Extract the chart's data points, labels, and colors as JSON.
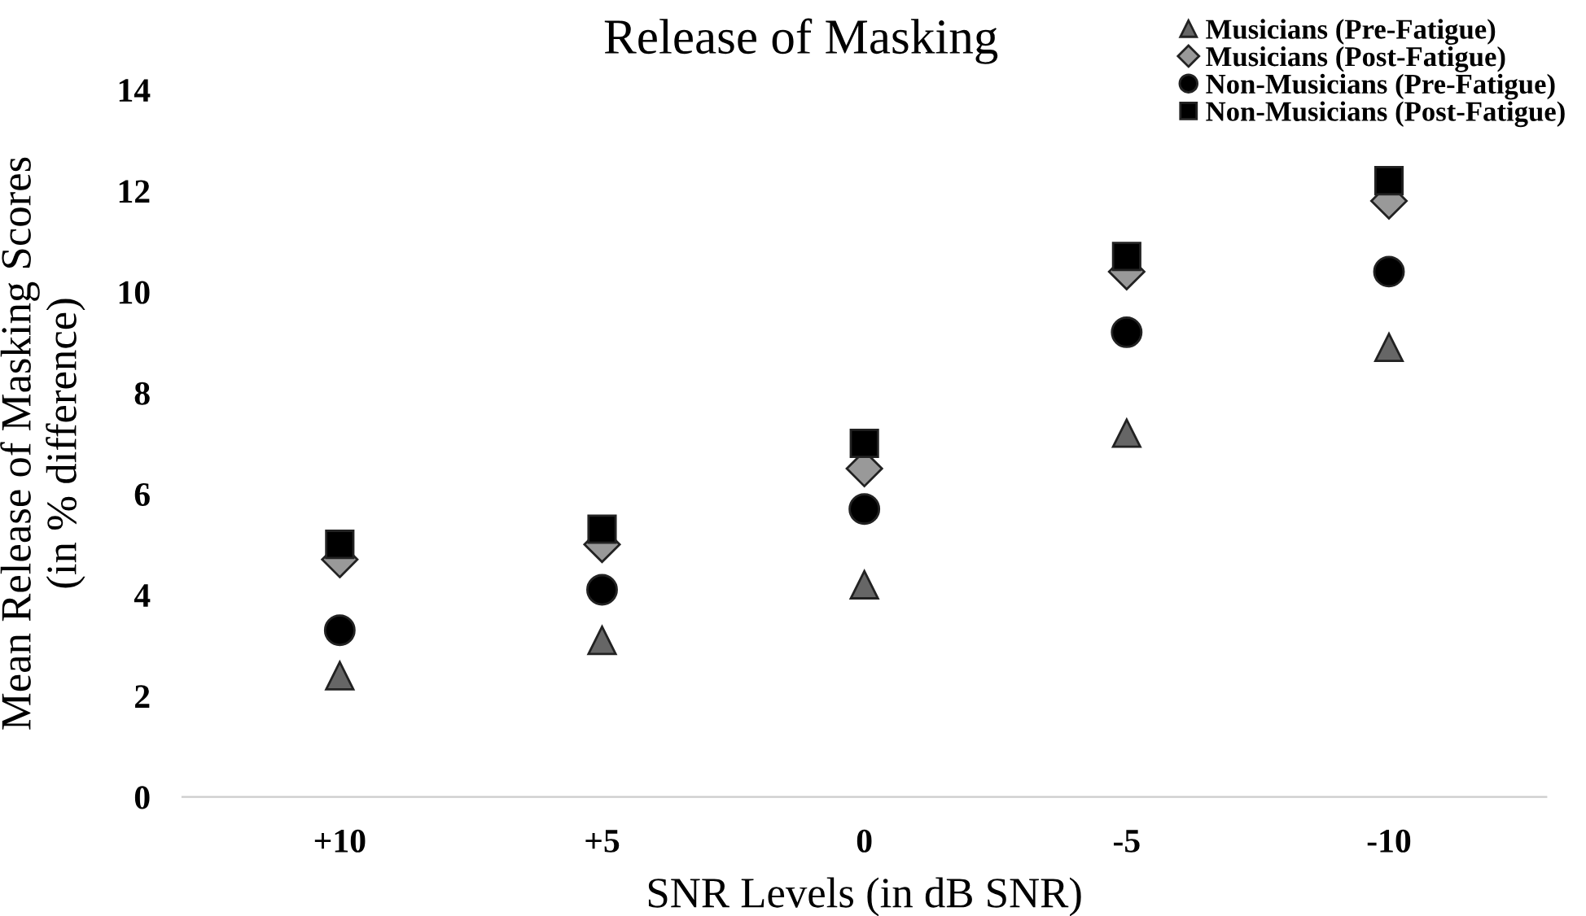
{
  "chart_data": {
    "type": "scatter",
    "title": "Release of Masking",
    "xlabel": "SNR Levels (in dB SNR)",
    "ylabel": "Mean Release of Masking Scores\n(in % difference)",
    "categories": [
      "+10",
      "+5",
      "0",
      "-5",
      "-10"
    ],
    "ylim": [
      0,
      14
    ],
    "yticks": [
      0,
      2,
      4,
      6,
      8,
      10,
      12,
      14
    ],
    "grid": false,
    "legend": "top right",
    "series": [
      {
        "name": "Musicians (Pre-Fatigue)",
        "color": "#666666",
        "marker": "triangle",
        "values": [
          2.4,
          3.1,
          4.2,
          7.2,
          8.9
        ]
      },
      {
        "name": "Musicians (Post-Fatigue)",
        "color": "#999999",
        "marker": "diamond",
        "values": [
          4.7,
          5.0,
          6.5,
          10.4,
          11.8
        ]
      },
      {
        "name": "Non-Musicians (Pre-Fatigue)",
        "color": "#000000",
        "marker": "circle",
        "values": [
          3.3,
          4.1,
          5.7,
          9.2,
          10.4
        ]
      },
      {
        "name": "Non-Musicians (Post-Fatigue)",
        "color": "#000000",
        "marker": "square",
        "values": [
          5.0,
          5.3,
          7.0,
          10.7,
          12.2
        ]
      }
    ]
  }
}
